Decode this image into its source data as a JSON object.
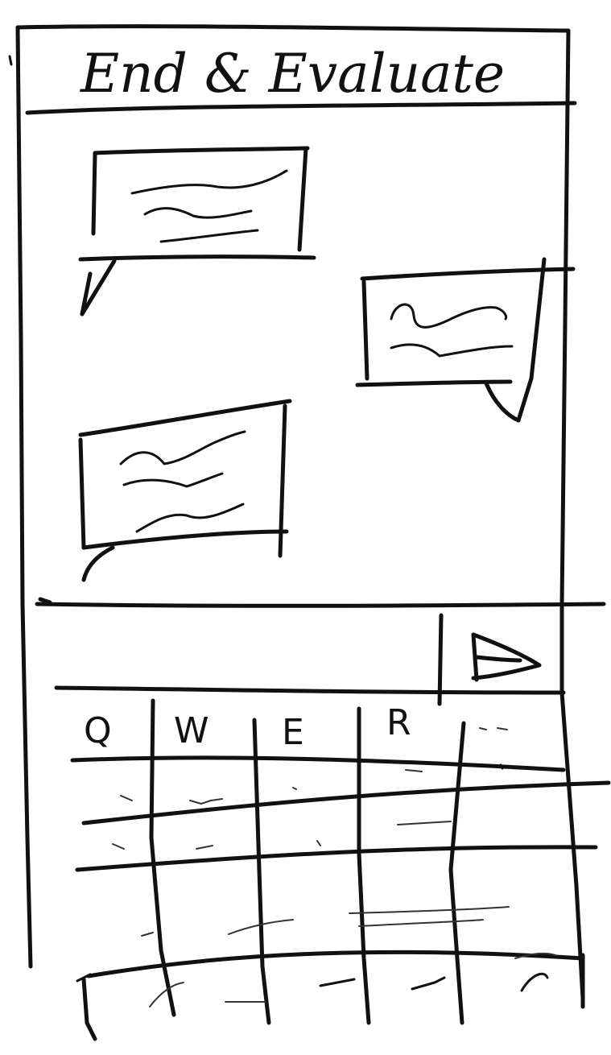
{
  "header": {
    "title": "End & Evaluate"
  },
  "chat": {
    "messages": [
      {
        "side": "left"
      },
      {
        "side": "right"
      },
      {
        "side": "left"
      }
    ]
  },
  "composer": {
    "send_icon": "send-icon"
  },
  "keyboard": {
    "visible_keys": [
      "Q",
      "W",
      "E",
      "R"
    ]
  }
}
